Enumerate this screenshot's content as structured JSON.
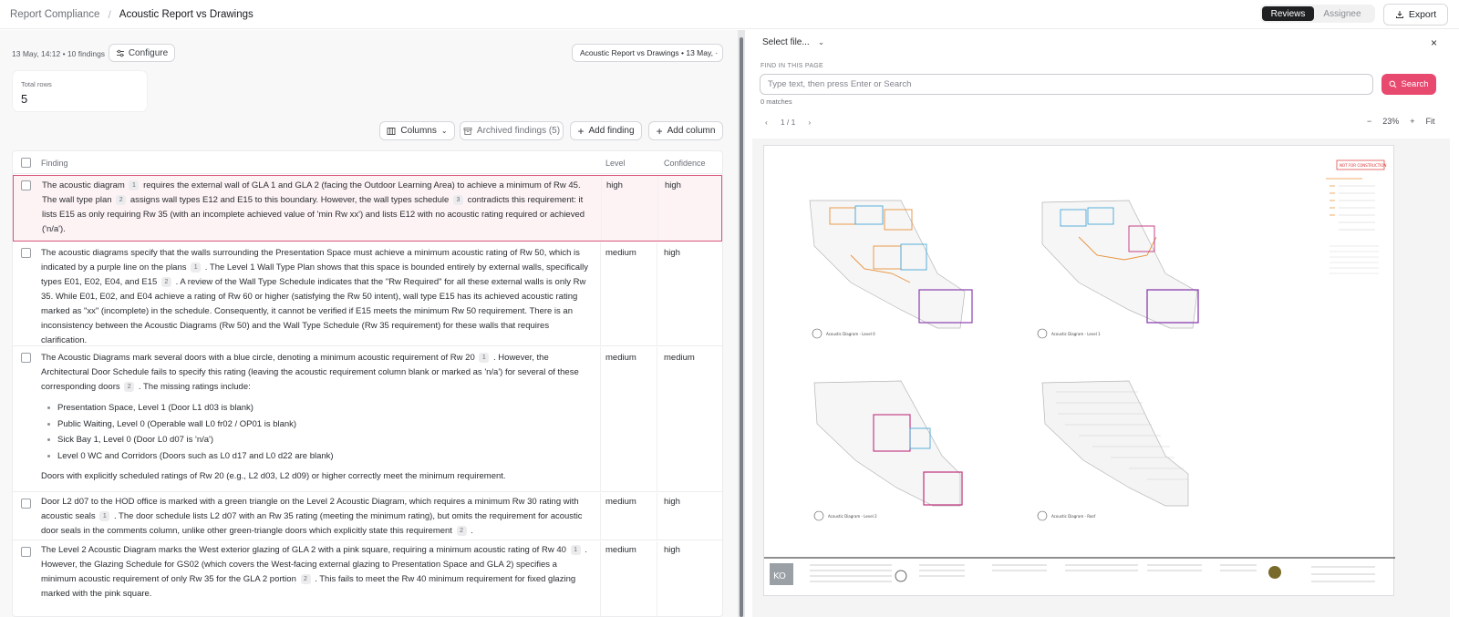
{
  "breadcrumb": {
    "root": "Report Compliance",
    "separator": "/",
    "current": "Acoustic Report vs Drawings"
  },
  "view_toggle": {
    "active": "Reviews",
    "inactive": "Assignee"
  },
  "export_label": "Export",
  "meta": {
    "line": "13 May, 14:12 • 10 findings",
    "configure_label": "Configure",
    "report_select": "Acoustic Report vs Drawings • 13 May, ·"
  },
  "total_rows": {
    "label": "Total rows",
    "value": "5"
  },
  "toolbar": {
    "columns": "Columns",
    "archived": "Archived findings (5)",
    "add_finding": "Add finding",
    "add_column": "Add column"
  },
  "table": {
    "headers": {
      "finding": "Finding",
      "level": "Level",
      "confidence": "Confidence"
    },
    "rows": [
      {
        "level": "high",
        "confidence": "high"
      },
      {
        "level": "medium",
        "confidence": "high"
      },
      {
        "level": "medium",
        "confidence": "medium"
      },
      {
        "level": "medium",
        "confidence": "high"
      },
      {
        "level": "medium",
        "confidence": "high"
      }
    ],
    "texts": {
      "r1_a": "The acoustic diagram",
      "r1_b": "requires the external wall of GLA 1 and GLA 2 (facing the Outdoor Learning Area) to achieve a minimum of Rw 45. The wall type plan",
      "r1_c": "assigns wall types E12 and E15 to this boundary. However, the wall types schedule",
      "r1_d": "contradicts this requirement: it lists E15 as only requiring Rw 35 (with an incomplete achieved value of 'min Rw xx') and lists E12 with no acoustic rating required or achieved ('n/a').",
      "r2_a": "The acoustic diagrams specify that the walls surrounding the Presentation Space must achieve a minimum acoustic rating of Rw 50, which is indicated by a purple line on the plans",
      "r2_b": ". The Level 1 Wall Type Plan shows that this space is bounded entirely by external walls, specifically types E01, E02, E04, and E15",
      "r2_c": ". A review of the Wall Type Schedule indicates that the \"Rw Required\" for all these external walls is only Rw 35. While E01, E02, and E04 achieve a rating of Rw 60 or higher (satisfying the Rw 50 intent), wall type E15 has its achieved acoustic rating marked as \"xx\" (incomplete) in the schedule. Consequently, it cannot be verified if E15 meets the minimum Rw 50 requirement. There is an inconsistency between the Acoustic Diagrams (Rw 50) and the Wall Type Schedule (Rw 35 requirement) for these walls that requires clarification.",
      "r3_a": "The Acoustic Diagrams mark several doors with a blue circle, denoting a minimum acoustic requirement of Rw 20",
      "r3_b": ". However, the Architectural Door Schedule fails to specify this rating (leaving the acoustic requirement column blank or marked as 'n/a') for several of these corresponding doors",
      "r3_c": ". The missing ratings include:",
      "r3_bullets": [
        "Presentation Space, Level 1 (Door L1 d03 is blank)",
        "Public Waiting, Level 0 (Operable wall L0 fr02 / OP01 is blank)",
        "Sick Bay 1, Level 0 (Door L0 d07 is 'n/a')",
        "Level 0 WC and Corridors (Doors such as L0 d17 and L0 d22 are blank)"
      ],
      "r3_d": "Doors with explicitly scheduled ratings of Rw 20 (e.g., L2 d03, L2 d09) or higher correctly meet the minimum requirement.",
      "r4_a": "Door L2 d07 to the HOD office is marked with a green triangle on the Level 2 Acoustic Diagram, which requires a minimum Rw 30 rating with acoustic seals",
      "r4_b": ". The door schedule lists L2 d07 with an Rw 35 rating (meeting the minimum rating), but omits the requirement for acoustic door seals in the comments column, unlike other green-triangle doors which explicitly state this requirement",
      "r4_c": ".",
      "r5_a": "The Level 2 Acoustic Diagram marks the West exterior glazing of GLA 2 with a pink square, requiring a minimum acoustic rating of Rw 40",
      "r5_b": ". However, the Glazing Schedule for GS02 (which covers the West-facing external glazing to Presentation Space and GLA 2) specifies a minimum acoustic requirement of only Rw 35 for the GLA 2 portion",
      "r5_c": ". This fails to meet the Rw 40 minimum requirement for fixed glazing marked with the pink square."
    },
    "badges": {
      "b1": "1",
      "b2": "2",
      "b3": "3"
    }
  },
  "viewer": {
    "file_select": "Select file...",
    "close": "×",
    "find_label": "FIND IN THIS PAGE",
    "search_placeholder": "Type text, then press Enter or Search",
    "search_button": "Search",
    "matches": "0 matches",
    "page": "1 / 1",
    "zoom": "23%",
    "fit": "Fit",
    "drawing": {
      "stamp": "NOT FOR CONSTRUCTION",
      "logo": "KO",
      "plan_labels": [
        "Acoustic Diagram - Level 0",
        "Acoustic Diagram - Level 1",
        "Acoustic Diagram - Level 2",
        "Acoustic Diagram - Roof"
      ]
    }
  },
  "colors": {
    "accent": "#e8496f",
    "selected_border": "#d9577a",
    "plan_orange": "#e8913a",
    "plan_blue": "#4aa8d8",
    "plan_purple": "#8a3fb0",
    "plan_magenta": "#c0307a"
  }
}
